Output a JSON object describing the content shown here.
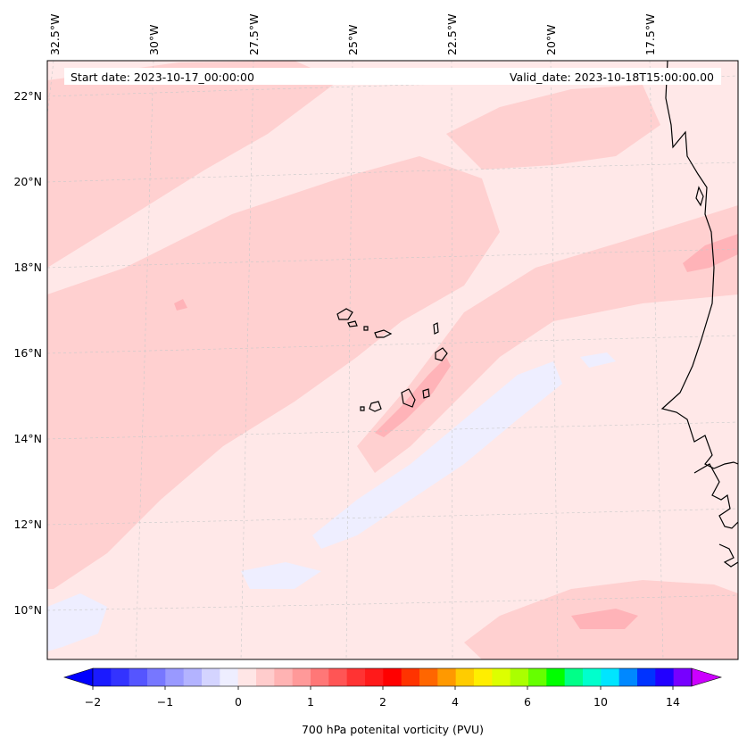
{
  "header": {
    "start_date": "Start date: 2023-10-17_00:00:00",
    "valid_date": "Valid_date: 2023-10-18T15:00:00.00"
  },
  "map": {
    "lon_labels": [
      "32.5°W",
      "30°W",
      "27.5°W",
      "25°W",
      "22.5°W",
      "20°W",
      "17.5°W"
    ],
    "lat_labels": [
      "22°N",
      "20°N",
      "18°N",
      "16°N",
      "14°N",
      "12°N",
      "10°N"
    ],
    "gridlines": true,
    "coastline_color": "#000000"
  },
  "colorbar": {
    "label": "700 hPa potenital vorticity (PVU)",
    "tick_labels": [
      "−2",
      "−1",
      "0",
      "1",
      "2",
      "4",
      "6",
      "10",
      "14"
    ],
    "colors": [
      "#1a1aff",
      "#3333ff",
      "#5555ff",
      "#7777ff",
      "#9999ff",
      "#b3b3ff",
      "#d4d4ff",
      "#eeeeff",
      "#ffe6e6",
      "#ffcccc",
      "#ffb3b3",
      "#ff9999",
      "#ff7777",
      "#ff5555",
      "#ff3333",
      "#ff1a1a",
      "#ff0000",
      "#ff3300",
      "#ff6600",
      "#ff9900",
      "#ffcc00",
      "#ffee00",
      "#ddff00",
      "#aaff00",
      "#66ff00",
      "#00ff00",
      "#00ff88",
      "#00ffcc",
      "#00e5ff",
      "#0088ff",
      "#0033ff",
      "#2200ff",
      "#7700ff"
    ],
    "under_color": "#0000ff",
    "over_color": "#cc00ff"
  }
}
